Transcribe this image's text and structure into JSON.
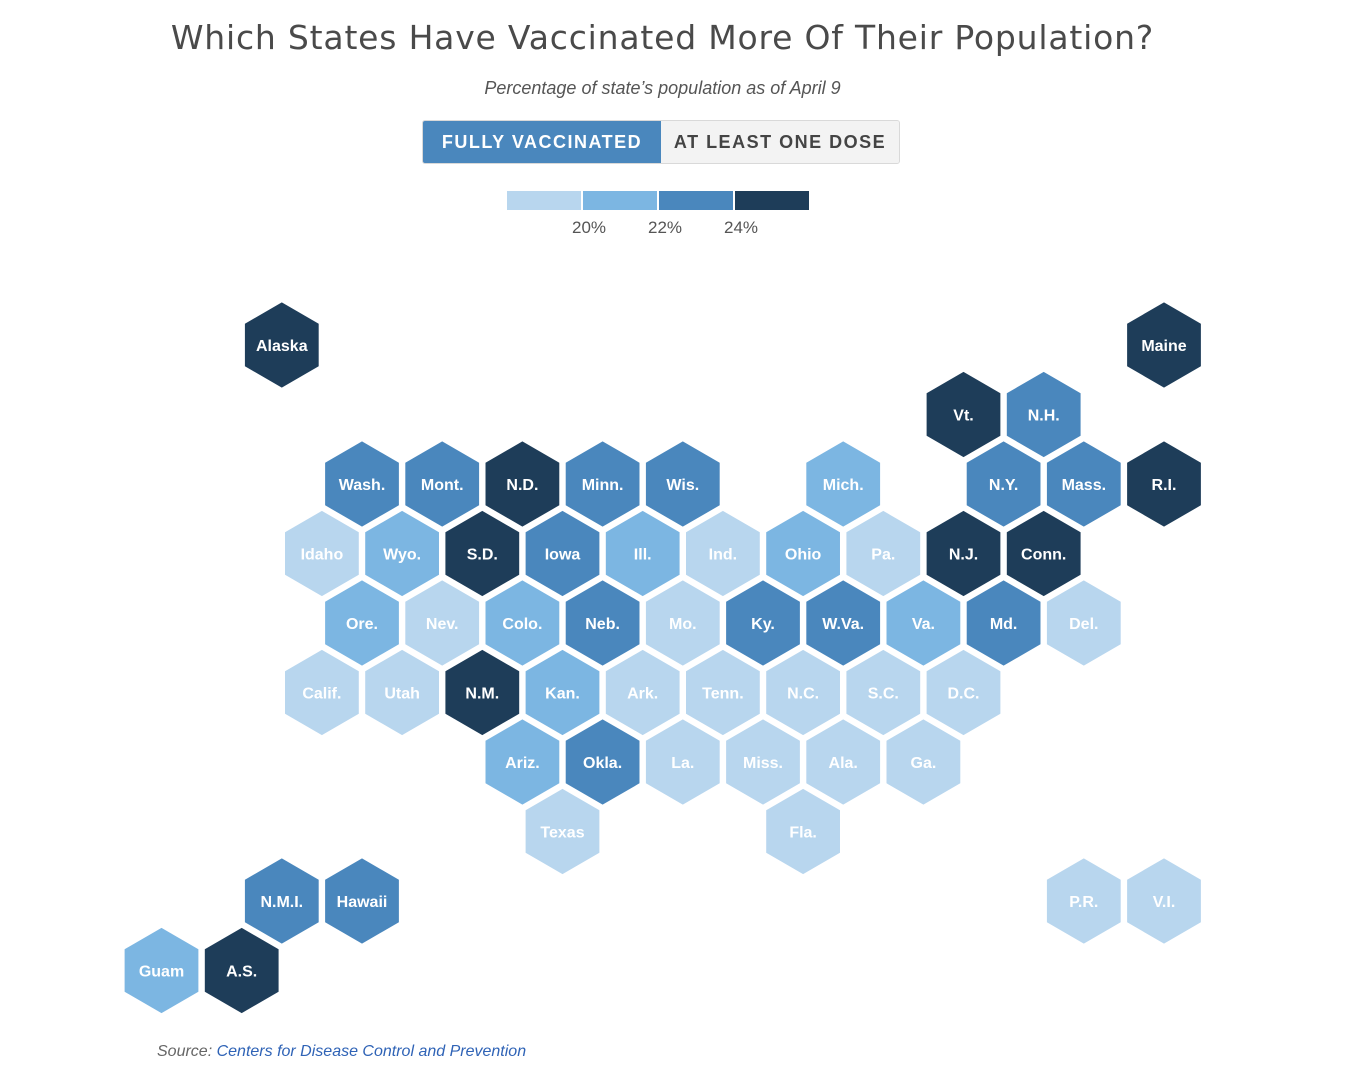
{
  "title": "Which States Have Vaccinated More Of Their Population?",
  "subtitle": "Percentage of state’s population as of April 9",
  "toggle": {
    "fully": "FULLY VACCINATED",
    "one_dose": "AT LEAST ONE DOSE",
    "active": "fully"
  },
  "legend": {
    "colors": [
      "#b8d6ee",
      "#7cb6e2",
      "#4a87bd",
      "#1e3d59"
    ],
    "labels": [
      "20%",
      "22%",
      "24%"
    ]
  },
  "source": {
    "prefix": "Source: ",
    "link": "Centers for Disease Control and Prevention"
  },
  "map_data": {
    "bins": [
      "below 20%",
      "20%–22%",
      "22%–24%",
      "24% and above"
    ],
    "regions": [
      {
        "label": "Alaska",
        "row": 0,
        "col": 1,
        "bin": 3
      },
      {
        "label": "Maine",
        "row": 0,
        "col": 12,
        "bin": 3
      },
      {
        "label": "Vt.",
        "row": 1,
        "col": 10,
        "bin": 3
      },
      {
        "label": "N.H.",
        "row": 1,
        "col": 11,
        "bin": 2
      },
      {
        "label": "Wash.",
        "row": 2,
        "col": 2,
        "bin": 2
      },
      {
        "label": "Mont.",
        "row": 2,
        "col": 3,
        "bin": 2
      },
      {
        "label": "N.D.",
        "row": 2,
        "col": 4,
        "bin": 3
      },
      {
        "label": "Minn.",
        "row": 2,
        "col": 5,
        "bin": 2
      },
      {
        "label": "Wis.",
        "row": 2,
        "col": 6,
        "bin": 2
      },
      {
        "label": "Mich.",
        "row": 2,
        "col": 8,
        "bin": 1
      },
      {
        "label": "N.Y.",
        "row": 2,
        "col": 10,
        "bin": 2
      },
      {
        "label": "Mass.",
        "row": 2,
        "col": 11,
        "bin": 2
      },
      {
        "label": "R.I.",
        "row": 2,
        "col": 12,
        "bin": 3
      },
      {
        "label": "Idaho",
        "row": 3,
        "col": 2,
        "bin": 0
      },
      {
        "label": "Wyo.",
        "row": 3,
        "col": 3,
        "bin": 1
      },
      {
        "label": "S.D.",
        "row": 3,
        "col": 4,
        "bin": 3
      },
      {
        "label": "Iowa",
        "row": 3,
        "col": 5,
        "bin": 2
      },
      {
        "label": "Ill.",
        "row": 3,
        "col": 6,
        "bin": 1
      },
      {
        "label": "Ind.",
        "row": 3,
        "col": 7,
        "bin": 0
      },
      {
        "label": "Ohio",
        "row": 3,
        "col": 8,
        "bin": 1
      },
      {
        "label": "Pa.",
        "row": 3,
        "col": 9,
        "bin": 0
      },
      {
        "label": "N.J.",
        "row": 3,
        "col": 10,
        "bin": 3
      },
      {
        "label": "Conn.",
        "row": 3,
        "col": 11,
        "bin": 3
      },
      {
        "label": "Ore.",
        "row": 4,
        "col": 2,
        "bin": 1
      },
      {
        "label": "Nev.",
        "row": 4,
        "col": 3,
        "bin": 0
      },
      {
        "label": "Colo.",
        "row": 4,
        "col": 4,
        "bin": 1
      },
      {
        "label": "Neb.",
        "row": 4,
        "col": 5,
        "bin": 2
      },
      {
        "label": "Mo.",
        "row": 4,
        "col": 6,
        "bin": 0
      },
      {
        "label": "Ky.",
        "row": 4,
        "col": 7,
        "bin": 2
      },
      {
        "label": "W.Va.",
        "row": 4,
        "col": 8,
        "bin": 2
      },
      {
        "label": "Va.",
        "row": 4,
        "col": 9,
        "bin": 1
      },
      {
        "label": "Md.",
        "row": 4,
        "col": 10,
        "bin": 2
      },
      {
        "label": "Del.",
        "row": 4,
        "col": 11,
        "bin": 0
      },
      {
        "label": "Calif.",
        "row": 5,
        "col": 2,
        "bin": 0
      },
      {
        "label": "Utah",
        "row": 5,
        "col": 3,
        "bin": 0
      },
      {
        "label": "N.M.",
        "row": 5,
        "col": 4,
        "bin": 3
      },
      {
        "label": "Kan.",
        "row": 5,
        "col": 5,
        "bin": 1
      },
      {
        "label": "Ark.",
        "row": 5,
        "col": 6,
        "bin": 0
      },
      {
        "label": "Tenn.",
        "row": 5,
        "col": 7,
        "bin": 0
      },
      {
        "label": "N.C.",
        "row": 5,
        "col": 8,
        "bin": 0
      },
      {
        "label": "S.C.",
        "row": 5,
        "col": 9,
        "bin": 0
      },
      {
        "label": "D.C.",
        "row": 5,
        "col": 10,
        "bin": 0
      },
      {
        "label": "Ariz.",
        "row": 6,
        "col": 4,
        "bin": 1
      },
      {
        "label": "Okla.",
        "row": 6,
        "col": 5,
        "bin": 2
      },
      {
        "label": "La.",
        "row": 6,
        "col": 6,
        "bin": 0
      },
      {
        "label": "Miss.",
        "row": 6,
        "col": 7,
        "bin": 0
      },
      {
        "label": "Ala.",
        "row": 6,
        "col": 8,
        "bin": 0
      },
      {
        "label": "Ga.",
        "row": 6,
        "col": 9,
        "bin": 0
      },
      {
        "label": "Texas",
        "row": 7,
        "col": 5,
        "bin": 0
      },
      {
        "label": "Fla.",
        "row": 7,
        "col": 8,
        "bin": 0
      },
      {
        "label": "N.M.I.",
        "row": 8,
        "col": 1,
        "bin": 2
      },
      {
        "label": "Hawaii",
        "row": 8,
        "col": 2,
        "bin": 2
      },
      {
        "label": "P.R.",
        "row": 8,
        "col": 11,
        "bin": 0
      },
      {
        "label": "V.I.",
        "row": 8,
        "col": 12,
        "bin": 0
      },
      {
        "label": "Guam",
        "row": 9,
        "col": 0,
        "bin": 1
      },
      {
        "label": "A.S.",
        "row": 9,
        "col": 1,
        "bin": 3
      }
    ]
  }
}
